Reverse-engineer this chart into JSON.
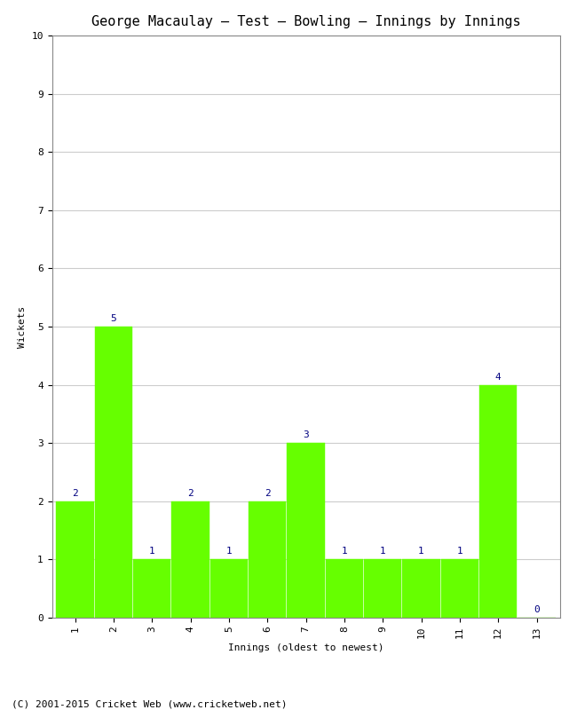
{
  "title": "George Macaulay – Test – Bowling – Innings by Innings",
  "xlabel": "Innings (oldest to newest)",
  "ylabel": "Wickets",
  "x_labels": [
    "1",
    "2",
    "3",
    "4",
    "5",
    "6",
    "7",
    "8",
    "9",
    "10",
    "11",
    "12",
    "13"
  ],
  "x_positions": [
    1,
    2,
    3,
    4,
    5,
    6,
    7,
    8,
    9,
    10,
    11,
    12,
    13
  ],
  "values": [
    2,
    5,
    1,
    2,
    1,
    2,
    3,
    1,
    1,
    1,
    1,
    4,
    0
  ],
  "bar_color": "#66ff00",
  "bar_edge_color": "#66ff00",
  "ylim": [
    0,
    10
  ],
  "yticks": [
    0,
    1,
    2,
    3,
    4,
    5,
    6,
    7,
    8,
    9,
    10
  ],
  "annotation_color": "#000080",
  "annotation_fontsize": 8,
  "title_fontsize": 11,
  "axis_label_fontsize": 8,
  "tick_fontsize": 8,
  "footer_text": "(C) 2001-2015 Cricket Web (www.cricketweb.net)",
  "footer_fontsize": 8,
  "background_color": "#ffffff",
  "grid_color": "#cccccc",
  "bar_width": 0.97
}
